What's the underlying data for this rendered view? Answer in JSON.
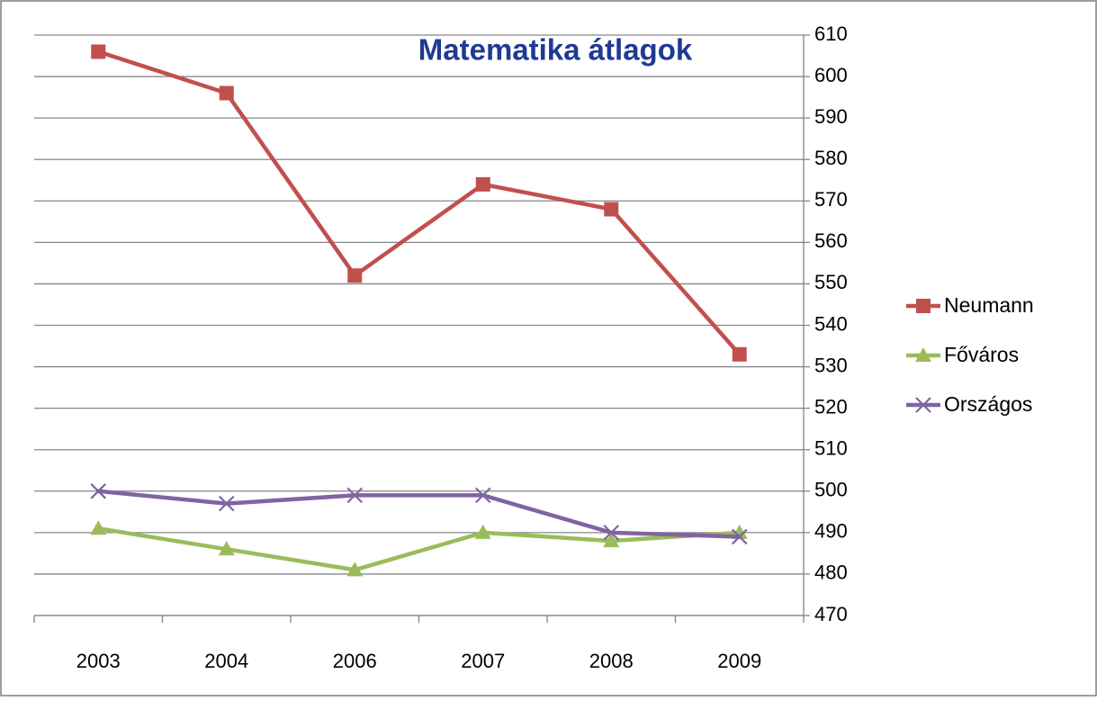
{
  "chart_data": {
    "type": "line",
    "title": "Matematika átlagok",
    "categories": [
      "2003",
      "2004",
      "2006",
      "2007",
      "2008",
      "2009"
    ],
    "series": [
      {
        "name": "Neumann",
        "color": "#c0504d",
        "marker": "square",
        "values": [
          606,
          596,
          552,
          574,
          568,
          533
        ]
      },
      {
        "name": "Főváros",
        "color": "#9bbb59",
        "marker": "triangle",
        "values": [
          491,
          486,
          481,
          490,
          488,
          490
        ]
      },
      {
        "name": "Országos",
        "color": "#8064a2",
        "marker": "x",
        "values": [
          500,
          497,
          499,
          499,
          490,
          489
        ]
      }
    ],
    "ylim": [
      470,
      610
    ],
    "yticks": [
      470,
      480,
      490,
      500,
      510,
      520,
      530,
      540,
      550,
      560,
      570,
      580,
      590,
      600,
      610
    ],
    "y_axis_side": "right",
    "grid": true,
    "legend": "right"
  }
}
